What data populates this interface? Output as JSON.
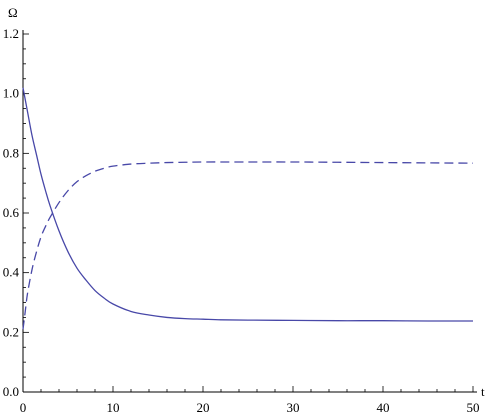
{
  "chart_data": {
    "type": "line",
    "title": "",
    "xlabel": "t",
    "ylabel": "Ω",
    "xlim": [
      0,
      50
    ],
    "ylim": [
      0,
      1.2
    ],
    "xticks": [
      0,
      10,
      20,
      30,
      40,
      50
    ],
    "xtick_labels": [
      "0",
      "10",
      "20",
      "30",
      "40",
      "50"
    ],
    "yticks": [
      0.0,
      0.2,
      0.4,
      0.6,
      0.8,
      1.0,
      1.2
    ],
    "ytick_labels": [
      "0.0",
      "0.2",
      "0.4",
      "0.6",
      "0.8",
      "1.0",
      "1.2"
    ],
    "grid": false,
    "legend": "none",
    "line_color": "#4848a8",
    "series": [
      {
        "style": "solid",
        "x": [
          0,
          0.5,
          1,
          1.5,
          2,
          2.5,
          3,
          4,
          5,
          6,
          7,
          8,
          9,
          10,
          12,
          14,
          16,
          18,
          20,
          22,
          25,
          30,
          35,
          40,
          45,
          50
        ],
        "y": [
          1.02,
          0.94,
          0.86,
          0.795,
          0.73,
          0.675,
          0.625,
          0.54,
          0.47,
          0.415,
          0.375,
          0.34,
          0.315,
          0.295,
          0.27,
          0.258,
          0.25,
          0.246,
          0.244,
          0.242,
          0.241,
          0.24,
          0.239,
          0.239,
          0.238,
          0.238
        ]
      },
      {
        "style": "dashed",
        "x": [
          0,
          0.25,
          0.5,
          1,
          1.5,
          2,
          2.5,
          3,
          4,
          5,
          6,
          7,
          8,
          9,
          10,
          12,
          14,
          16,
          18,
          20,
          25,
          30,
          35,
          40,
          45,
          50
        ],
        "y": [
          0.21,
          0.27,
          0.33,
          0.41,
          0.47,
          0.52,
          0.555,
          0.585,
          0.635,
          0.675,
          0.705,
          0.725,
          0.74,
          0.75,
          0.757,
          0.764,
          0.767,
          0.769,
          0.77,
          0.771,
          0.771,
          0.771,
          0.77,
          0.769,
          0.768,
          0.767
        ]
      }
    ]
  }
}
